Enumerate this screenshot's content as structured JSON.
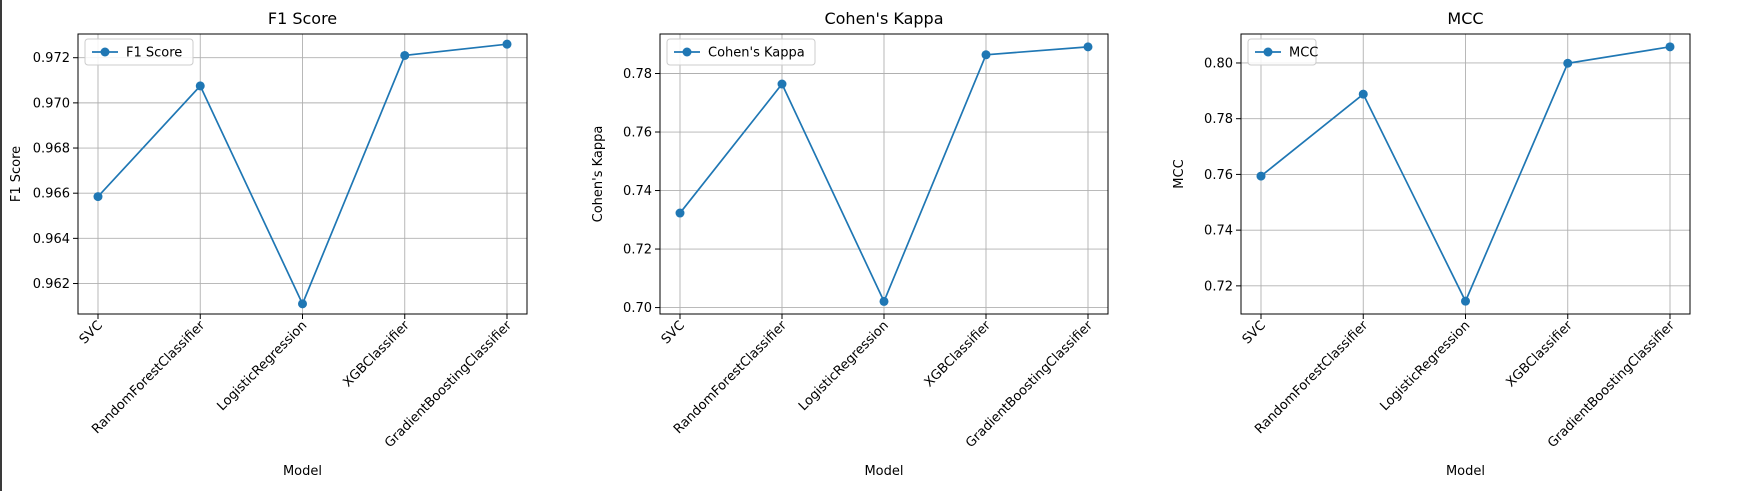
{
  "chart_data": [
    {
      "type": "line",
      "title": "F1 Score",
      "xlabel": "Model",
      "ylabel": "F1 Score",
      "categories": [
        "SVC",
        "RandomForestClassifier",
        "LogisticRegression",
        "XGBClassifier",
        "GradientBoostingClassifier"
      ],
      "series": [
        {
          "name": "F1 Score",
          "values": [
            0.96585,
            0.97075,
            0.9611,
            0.9721,
            0.9726
          ],
          "color": "#1f77b4"
        }
      ],
      "ylim": [
        0.96065,
        0.97305
      ],
      "yticks": [
        0.962,
        0.964,
        0.966,
        0.968,
        0.97,
        0.972
      ],
      "ytick_labels": [
        "0.962",
        "0.964",
        "0.966",
        "0.968",
        "0.970",
        "0.972"
      ],
      "grid": true,
      "legend_position": "top-left"
    },
    {
      "type": "line",
      "title": "Cohen's Kappa",
      "xlabel": "Model",
      "ylabel": "Cohen's Kappa",
      "categories": [
        "SVC",
        "RandomForestClassifier",
        "LogisticRegression",
        "XGBClassifier",
        "GradientBoostingClassifier"
      ],
      "series": [
        {
          "name": "Cohen's Kappa",
          "values": [
            0.7323,
            0.7764,
            0.7021,
            0.7864,
            0.7891
          ],
          "color": "#1f77b4"
        }
      ],
      "ylim": [
        0.6978,
        0.7935
      ],
      "yticks": [
        0.7,
        0.72,
        0.74,
        0.76,
        0.78
      ],
      "ytick_labels": [
        "0.70",
        "0.72",
        "0.74",
        "0.76",
        "0.78"
      ],
      "grid": true,
      "legend_position": "top-left"
    },
    {
      "type": "line",
      "title": "MCC",
      "xlabel": "Model",
      "ylabel": "MCC",
      "categories": [
        "SVC",
        "RandomForestClassifier",
        "LogisticRegression",
        "XGBClassifier",
        "GradientBoostingClassifier"
      ],
      "series": [
        {
          "name": "MCC",
          "values": [
            0.7594,
            0.7888,
            0.7145,
            0.7999,
            0.8058
          ],
          "color": "#1f77b4"
        }
      ],
      "ylim": [
        0.7099,
        0.8104
      ],
      "yticks": [
        0.72,
        0.74,
        0.76,
        0.78,
        0.8
      ],
      "ytick_labels": [
        "0.72",
        "0.74",
        "0.76",
        "0.78",
        "0.80"
      ],
      "grid": true,
      "legend_position": "top-left"
    }
  ]
}
